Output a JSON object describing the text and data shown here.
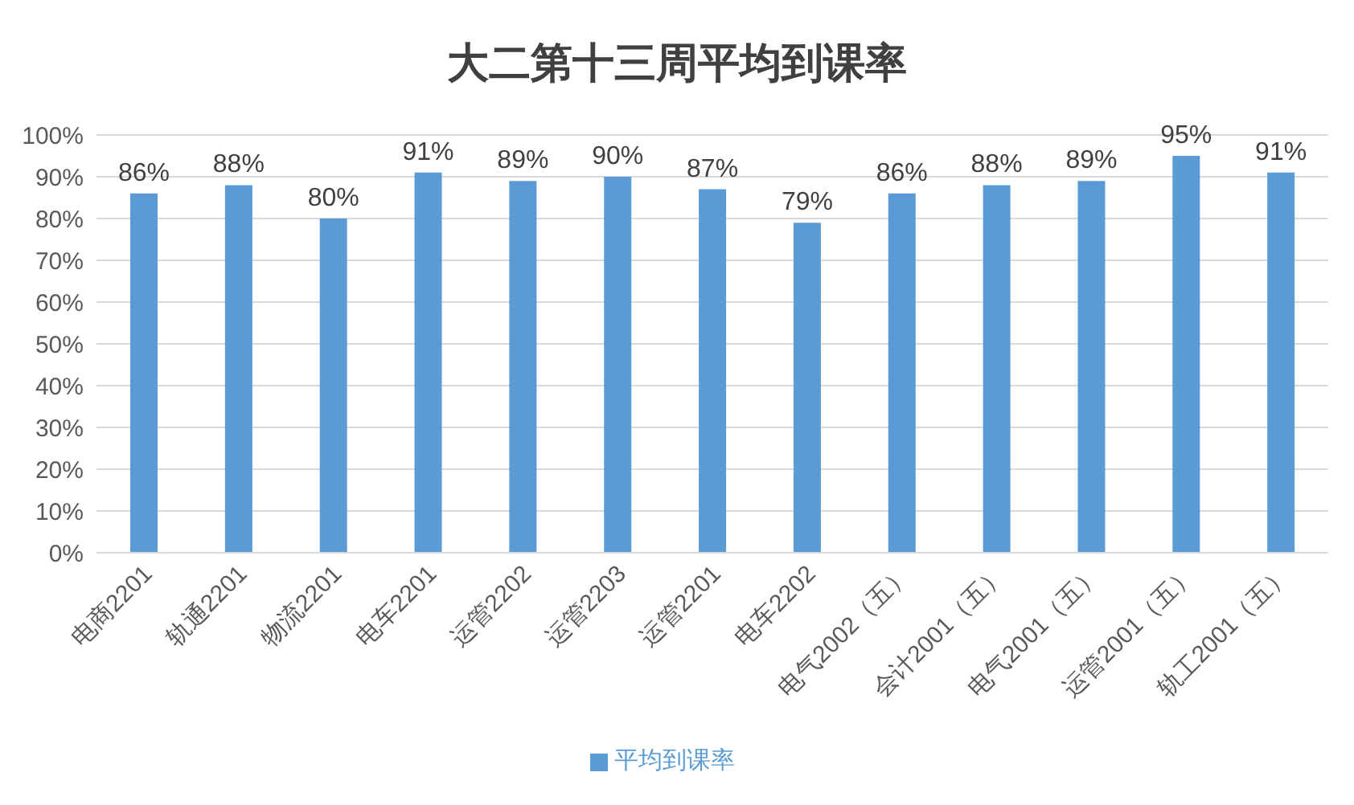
{
  "chart_data": {
    "type": "bar",
    "title": "大二第十三周平均到课率",
    "categories": [
      "电商2201",
      "轨通2201",
      "物流2201",
      "电车2201",
      "运管2202",
      "运管2203",
      "运管2201",
      "电车2202",
      "电气2002（五）",
      "会计2001（五）",
      "电气2001（五）",
      "运管2001（五）",
      "轨工2001（五）"
    ],
    "series": [
      {
        "name": "平均到课率",
        "color": "#5b9bd5",
        "values": [
          86,
          88,
          80,
          91,
          89,
          90,
          87,
          79,
          86,
          88,
          89,
          95,
          91
        ],
        "value_labels": [
          "86%",
          "88%",
          "80%",
          "91%",
          "89%",
          "90%",
          "87%",
          "79%",
          "86%",
          "88%",
          "89%",
          "95%",
          "91%"
        ]
      }
    ],
    "ylim": [
      0,
      100
    ],
    "yticks": [
      {
        "value": 0,
        "label": "0%"
      },
      {
        "value": 10,
        "label": "10%"
      },
      {
        "value": 20,
        "label": "20%"
      },
      {
        "value": 30,
        "label": "30%"
      },
      {
        "value": 40,
        "label": "40%"
      },
      {
        "value": 50,
        "label": "50%"
      },
      {
        "value": 60,
        "label": "60%"
      },
      {
        "value": 70,
        "label": "70%"
      },
      {
        "value": 80,
        "label": "80%"
      },
      {
        "value": 90,
        "label": "90%"
      },
      {
        "value": 100,
        "label": "100%"
      }
    ],
    "grid": "y",
    "legend": "bottom"
  }
}
